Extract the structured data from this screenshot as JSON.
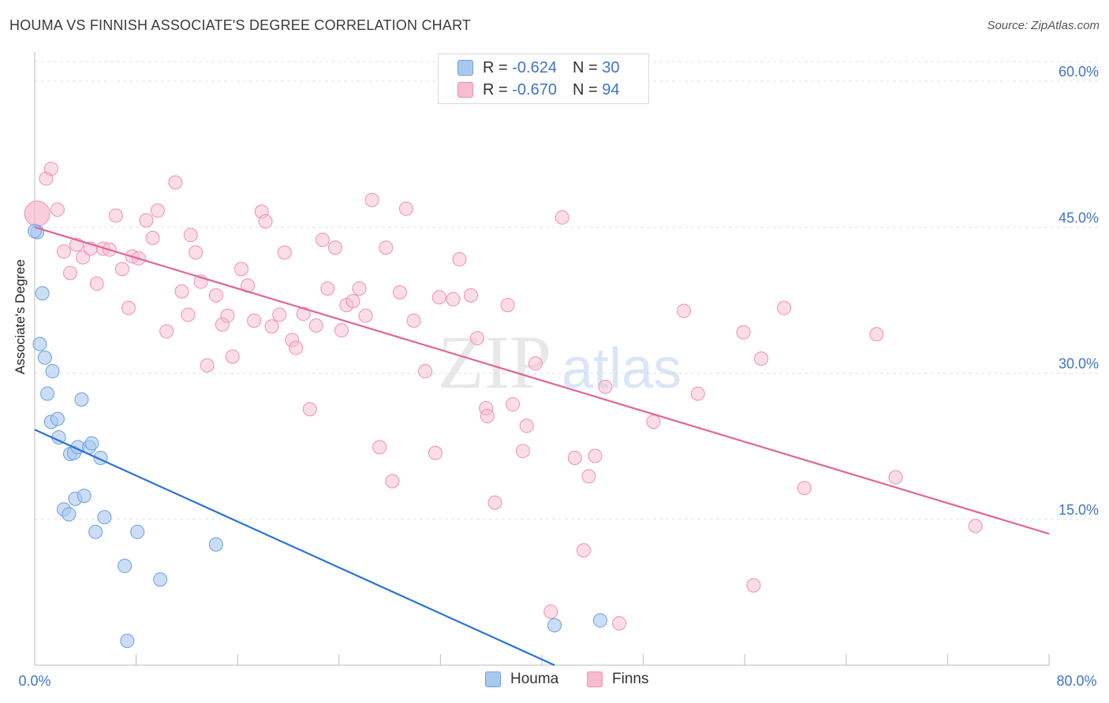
{
  "title": "HOUMA VS FINNISH ASSOCIATE'S DEGREE CORRELATION CHART",
  "source": "Source: ZipAtlas.com",
  "watermark": {
    "zip": "ZIP",
    "atlas": "atlas"
  },
  "legend": {
    "rows": [
      {
        "r_label": "R =",
        "r_value": "-0.624",
        "n_label": "N =",
        "n_value": "30"
      },
      {
        "r_label": "R =",
        "r_value": "-0.670",
        "n_label": "N =",
        "n_value": "94"
      }
    ]
  },
  "bottom_legend": {
    "houma": "Houma",
    "finns": "Finns"
  },
  "colors": {
    "houma_fill": "#a9c8f0",
    "houma_stroke": "#6b9fe0",
    "houma_line": "#2a72d6",
    "finns_fill": "#f7bcd0",
    "finns_stroke": "#ef8fb0",
    "finns_line": "#e06595",
    "axis_label": "#3f74c9",
    "grid": "#e3e3e3"
  },
  "chart_data": {
    "type": "scatter",
    "title": "HOUMA VS FINNISH ASSOCIATE'S DEGREE CORRELATION CHART",
    "xlabel": "",
    "ylabel": "Associate's Degree",
    "xlim": [
      0,
      80
    ],
    "ylim": [
      0,
      63
    ],
    "x_tick_labels": [
      "0.0%",
      "80.0%"
    ],
    "y_ticks": [
      15,
      30,
      45,
      60
    ],
    "y_tick_labels": [
      "15.0%",
      "30.0%",
      "45.0%",
      "60.0%"
    ],
    "grid": true,
    "legend_placement": "top-center",
    "series": [
      {
        "name": "Houma",
        "r": -0.624,
        "n": 30,
        "trend": {
          "x": [
            0,
            41
          ],
          "y": [
            24.2,
            0
          ]
        },
        "points": [
          [
            0.2,
            44.5
          ],
          [
            0.6,
            38.2
          ],
          [
            0.4,
            33.0
          ],
          [
            0.8,
            31.6
          ],
          [
            1.4,
            30.2
          ],
          [
            1.0,
            27.9
          ],
          [
            1.3,
            25.0
          ],
          [
            1.8,
            25.3
          ],
          [
            3.7,
            27.3
          ],
          [
            1.9,
            23.4
          ],
          [
            2.8,
            21.7
          ],
          [
            3.1,
            21.8
          ],
          [
            3.4,
            22.4
          ],
          [
            4.3,
            22.4
          ],
          [
            4.5,
            22.8
          ],
          [
            5.2,
            21.3
          ],
          [
            2.3,
            16.0
          ],
          [
            2.7,
            15.5
          ],
          [
            3.2,
            17.1
          ],
          [
            3.9,
            17.4
          ],
          [
            4.8,
            13.7
          ],
          [
            5.5,
            15.2
          ],
          [
            8.1,
            13.7
          ],
          [
            7.1,
            10.2
          ],
          [
            9.9,
            8.8
          ],
          [
            14.3,
            12.4
          ],
          [
            7.3,
            2.5
          ],
          [
            41.0,
            4.1
          ],
          [
            44.6,
            4.6
          ],
          [
            0.0,
            44.6
          ]
        ]
      },
      {
        "name": "Finns",
        "r": -0.67,
        "n": 94,
        "trend": {
          "x": [
            0,
            80
          ],
          "y": [
            45.0,
            13.5
          ]
        },
        "points": [
          [
            0.2,
            46.4
          ],
          [
            0.9,
            50.0
          ],
          [
            1.3,
            51.0
          ],
          [
            1.8,
            46.8
          ],
          [
            2.3,
            42.5
          ],
          [
            2.8,
            40.3
          ],
          [
            3.3,
            43.2
          ],
          [
            3.8,
            41.9
          ],
          [
            4.4,
            42.8
          ],
          [
            4.9,
            39.2
          ],
          [
            5.4,
            42.8
          ],
          [
            5.9,
            42.7
          ],
          [
            6.4,
            46.2
          ],
          [
            6.9,
            40.7
          ],
          [
            7.4,
            36.7
          ],
          [
            7.7,
            42.0
          ],
          [
            8.2,
            41.8
          ],
          [
            8.8,
            45.7
          ],
          [
            9.3,
            43.9
          ],
          [
            9.7,
            46.7
          ],
          [
            10.4,
            34.3
          ],
          [
            11.1,
            49.6
          ],
          [
            11.6,
            38.4
          ],
          [
            12.1,
            36.0
          ],
          [
            12.3,
            44.2
          ],
          [
            12.7,
            42.4
          ],
          [
            13.1,
            39.4
          ],
          [
            13.6,
            30.8
          ],
          [
            14.3,
            38.0
          ],
          [
            14.8,
            35.0
          ],
          [
            15.2,
            35.9
          ],
          [
            15.6,
            31.7
          ],
          [
            16.3,
            40.7
          ],
          [
            16.8,
            39.0
          ],
          [
            17.3,
            35.4
          ],
          [
            17.9,
            46.6
          ],
          [
            18.2,
            45.6
          ],
          [
            18.7,
            34.8
          ],
          [
            19.3,
            36.0
          ],
          [
            19.7,
            42.4
          ],
          [
            20.3,
            33.4
          ],
          [
            20.6,
            32.6
          ],
          [
            21.2,
            36.1
          ],
          [
            21.7,
            26.3
          ],
          [
            22.2,
            34.9
          ],
          [
            22.7,
            43.7
          ],
          [
            23.1,
            38.7
          ],
          [
            23.7,
            42.9
          ],
          [
            24.2,
            34.4
          ],
          [
            24.6,
            37.0
          ],
          [
            25.1,
            37.4
          ],
          [
            25.6,
            38.7
          ],
          [
            26.1,
            35.9
          ],
          [
            26.6,
            47.8
          ],
          [
            27.2,
            22.4
          ],
          [
            27.7,
            42.9
          ],
          [
            28.2,
            18.9
          ],
          [
            28.8,
            38.3
          ],
          [
            29.3,
            46.9
          ],
          [
            29.9,
            35.4
          ],
          [
            30.8,
            30.2
          ],
          [
            31.6,
            21.8
          ],
          [
            31.9,
            37.8
          ],
          [
            33.0,
            37.6
          ],
          [
            33.5,
            41.7
          ],
          [
            34.4,
            38.0
          ],
          [
            34.9,
            33.6
          ],
          [
            35.6,
            26.4
          ],
          [
            35.7,
            25.6
          ],
          [
            36.3,
            16.7
          ],
          [
            37.3,
            37.0
          ],
          [
            37.7,
            26.8
          ],
          [
            38.5,
            22.0
          ],
          [
            38.8,
            24.6
          ],
          [
            39.5,
            31.0
          ],
          [
            40.7,
            5.5
          ],
          [
            41.6,
            46.0
          ],
          [
            42.6,
            21.3
          ],
          [
            43.3,
            11.8
          ],
          [
            43.7,
            19.4
          ],
          [
            44.2,
            21.5
          ],
          [
            45.0,
            28.6
          ],
          [
            46.1,
            4.3
          ],
          [
            48.8,
            25.0
          ],
          [
            51.2,
            36.4
          ],
          [
            52.3,
            27.9
          ],
          [
            55.9,
            34.2
          ],
          [
            56.7,
            8.2
          ],
          [
            57.3,
            31.5
          ],
          [
            59.1,
            36.7
          ],
          [
            60.7,
            18.2
          ],
          [
            66.4,
            34.0
          ],
          [
            67.9,
            19.3
          ],
          [
            74.2,
            14.3
          ]
        ]
      }
    ]
  }
}
